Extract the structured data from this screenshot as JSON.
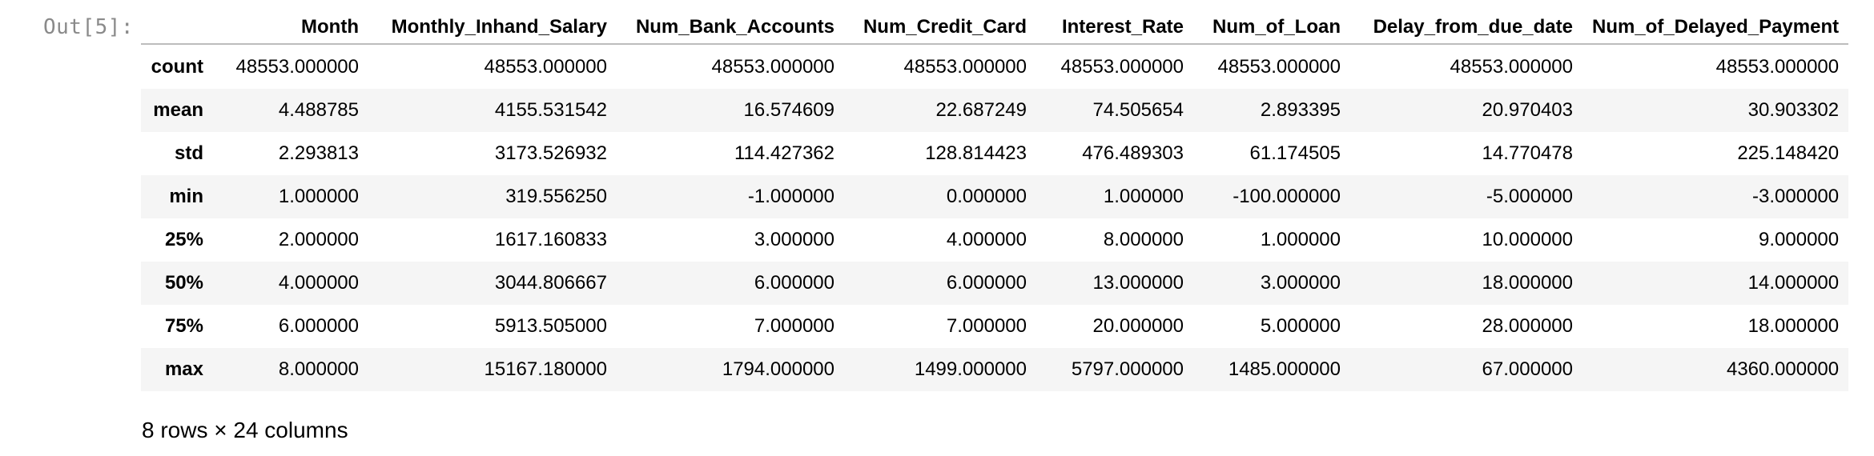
{
  "cell": {
    "prompt": "Out[5]:"
  },
  "table": {
    "index_header": "",
    "columns": [
      "Month",
      "Monthly_Inhand_Salary",
      "Num_Bank_Accounts",
      "Num_Credit_Card",
      "Interest_Rate",
      "Num_of_Loan",
      "Delay_from_due_date",
      "Num_of_Delayed_Payment"
    ],
    "rows": [
      {
        "label": "count",
        "values": [
          "48553.000000",
          "48553.000000",
          "48553.000000",
          "48553.000000",
          "48553.000000",
          "48553.000000",
          "48553.000000",
          "48553.000000"
        ]
      },
      {
        "label": "mean",
        "values": [
          "4.488785",
          "4155.531542",
          "16.574609",
          "22.687249",
          "74.505654",
          "2.893395",
          "20.970403",
          "30.903302"
        ]
      },
      {
        "label": "std",
        "values": [
          "2.293813",
          "3173.526932",
          "114.427362",
          "128.814423",
          "476.489303",
          "61.174505",
          "14.770478",
          "225.148420"
        ]
      },
      {
        "label": "min",
        "values": [
          "1.000000",
          "319.556250",
          "-1.000000",
          "0.000000",
          "1.000000",
          "-100.000000",
          "-5.000000",
          "-3.000000"
        ]
      },
      {
        "label": "25%",
        "values": [
          "2.000000",
          "1617.160833",
          "3.000000",
          "4.000000",
          "8.000000",
          "1.000000",
          "10.000000",
          "9.000000"
        ]
      },
      {
        "label": "50%",
        "values": [
          "4.000000",
          "3044.806667",
          "6.000000",
          "6.000000",
          "13.000000",
          "3.000000",
          "18.000000",
          "14.000000"
        ]
      },
      {
        "label": "75%",
        "values": [
          "6.000000",
          "5913.505000",
          "7.000000",
          "7.000000",
          "20.000000",
          "5.000000",
          "28.000000",
          "18.000000"
        ]
      },
      {
        "label": "max",
        "values": [
          "8.000000",
          "15167.180000",
          "1794.000000",
          "1499.000000",
          "5797.000000",
          "1485.000000",
          "67.000000",
          "4360.000000"
        ]
      }
    ]
  },
  "footer": {
    "shape_text": "8 rows × 24 columns"
  }
}
